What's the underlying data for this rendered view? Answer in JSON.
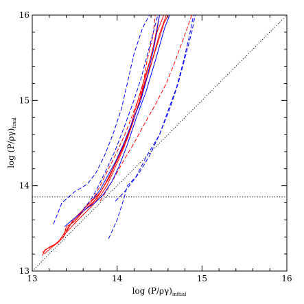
{
  "chart_data": {
    "type": "line",
    "xlabel": "log (P/ργ)",
    "xlabel_sub": "initial",
    "ylabel": "log (P/ργ)",
    "ylabel_sub": "final",
    "xlim": [
      13,
      16
    ],
    "ylim": [
      13,
      16
    ],
    "xticks": [
      13,
      14,
      15,
      16
    ],
    "yticks": [
      13,
      14,
      15,
      16
    ],
    "grid": false,
    "reference_lines": [
      {
        "name": "",
        "kind": "diagonal",
        "style": "dotted",
        "color": "#000000",
        "points": [
          [
            13,
            13
          ],
          [
            16,
            16
          ]
        ]
      },
      {
        "name": "",
        "kind": "horizontal",
        "style": "dotted",
        "color": "#000000",
        "y": 13.87
      }
    ],
    "series": [
      {
        "color": "#ff0000",
        "style": "solid",
        "points": [
          [
            13.12,
            13.18
          ],
          [
            13.15,
            13.25
          ],
          [
            13.25,
            13.3
          ],
          [
            13.37,
            13.4
          ],
          [
            13.4,
            13.52
          ],
          [
            13.5,
            13.58
          ],
          [
            13.6,
            13.7
          ],
          [
            13.72,
            13.8
          ],
          [
            13.82,
            13.95
          ],
          [
            13.9,
            14.1
          ],
          [
            14.0,
            14.3
          ],
          [
            14.12,
            14.55
          ],
          [
            14.22,
            14.85
          ],
          [
            14.32,
            15.2
          ],
          [
            14.42,
            15.6
          ],
          [
            14.5,
            16.0
          ]
        ]
      },
      {
        "color": "#ff0000",
        "style": "solid",
        "points": [
          [
            13.12,
            13.22
          ],
          [
            13.2,
            13.28
          ],
          [
            13.3,
            13.33
          ],
          [
            13.38,
            13.45
          ],
          [
            13.45,
            13.55
          ],
          [
            13.55,
            13.65
          ],
          [
            13.65,
            13.75
          ],
          [
            13.76,
            13.85
          ],
          [
            13.86,
            14.02
          ],
          [
            13.95,
            14.2
          ],
          [
            14.05,
            14.42
          ],
          [
            14.16,
            14.7
          ],
          [
            14.26,
            15.05
          ],
          [
            14.38,
            15.45
          ],
          [
            14.47,
            15.8
          ],
          [
            14.55,
            16.0
          ]
        ]
      },
      {
        "color": "#ff0000",
        "style": "solid",
        "points": [
          [
            13.14,
            13.2
          ],
          [
            13.22,
            13.27
          ],
          [
            13.32,
            13.35
          ],
          [
            13.38,
            13.42
          ],
          [
            13.48,
            13.6
          ],
          [
            13.6,
            13.72
          ],
          [
            13.7,
            13.82
          ],
          [
            13.8,
            13.92
          ],
          [
            13.9,
            14.08
          ],
          [
            14.0,
            14.3
          ],
          [
            14.1,
            14.52
          ],
          [
            14.2,
            14.8
          ],
          [
            14.32,
            15.15
          ],
          [
            14.44,
            15.55
          ],
          [
            14.55,
            15.9
          ],
          [
            14.6,
            16.0
          ]
        ]
      },
      {
        "color": "#ff0000",
        "style": "solid",
        "points": [
          [
            13.4,
            13.45
          ],
          [
            13.52,
            13.58
          ],
          [
            13.62,
            13.68
          ],
          [
            13.72,
            13.78
          ],
          [
            13.8,
            13.88
          ],
          [
            13.88,
            14.0
          ],
          [
            13.98,
            14.22
          ],
          [
            14.08,
            14.45
          ],
          [
            14.18,
            14.72
          ],
          [
            14.28,
            15.05
          ],
          [
            14.4,
            15.42
          ],
          [
            14.5,
            15.78
          ],
          [
            14.58,
            16.0
          ]
        ]
      },
      {
        "color": "#ff0000",
        "style": "dashed",
        "points": [
          [
            13.55,
            13.65
          ],
          [
            13.62,
            13.75
          ],
          [
            13.72,
            13.85
          ],
          [
            13.8,
            14.0
          ],
          [
            13.9,
            14.2
          ],
          [
            14.0,
            14.4
          ],
          [
            14.1,
            14.62
          ],
          [
            14.2,
            14.88
          ],
          [
            14.3,
            15.15
          ],
          [
            14.35,
            15.45
          ],
          [
            14.42,
            15.75
          ],
          [
            14.45,
            16.0
          ]
        ]
      },
      {
        "color": "#ff0000",
        "style": "dashed",
        "points": [
          [
            13.8,
            13.82
          ],
          [
            13.88,
            13.95
          ],
          [
            13.98,
            14.12
          ],
          [
            14.08,
            14.3
          ],
          [
            14.2,
            14.5
          ],
          [
            14.32,
            14.72
          ],
          [
            14.45,
            14.95
          ],
          [
            14.58,
            15.2
          ],
          [
            14.68,
            15.45
          ],
          [
            14.78,
            15.72
          ],
          [
            14.88,
            16.0
          ]
        ]
      },
      {
        "color": "#0000ff",
        "style": "solid",
        "points": [
          [
            13.38,
            13.52
          ],
          [
            13.5,
            13.62
          ],
          [
            13.62,
            13.72
          ],
          [
            13.74,
            13.8
          ],
          [
            13.84,
            13.9
          ],
          [
            13.94,
            14.05
          ],
          [
            14.02,
            14.22
          ],
          [
            14.12,
            14.48
          ],
          [
            14.22,
            14.78
          ],
          [
            14.34,
            15.1
          ],
          [
            14.46,
            15.5
          ],
          [
            14.56,
            15.85
          ],
          [
            14.62,
            16.0
          ]
        ]
      },
      {
        "color": "#0000ff",
        "style": "solid",
        "points": [
          [
            13.72,
            13.85
          ],
          [
            13.8,
            13.95
          ],
          [
            13.88,
            14.1
          ],
          [
            13.98,
            14.28
          ],
          [
            14.08,
            14.5
          ],
          [
            14.18,
            14.75
          ],
          [
            14.28,
            15.0
          ],
          [
            14.36,
            15.3
          ],
          [
            14.44,
            15.65
          ],
          [
            14.5,
            16.0
          ]
        ]
      },
      {
        "color": "#0000ff",
        "style": "dashed",
        "points": [
          [
            13.25,
            13.55
          ],
          [
            13.35,
            13.8
          ],
          [
            13.5,
            13.93
          ],
          [
            13.65,
            14.02
          ],
          [
            13.75,
            14.15
          ],
          [
            13.85,
            14.35
          ],
          [
            13.95,
            14.6
          ],
          [
            14.05,
            14.9
          ],
          [
            14.12,
            15.2
          ],
          [
            14.2,
            15.55
          ],
          [
            14.3,
            15.85
          ],
          [
            14.38,
            16.0
          ]
        ]
      },
      {
        "color": "#0000ff",
        "style": "dashed",
        "points": [
          [
            13.9,
            13.38
          ],
          [
            14.0,
            13.6
          ],
          [
            14.08,
            13.85
          ],
          [
            14.12,
            14.0
          ],
          [
            14.22,
            14.1
          ],
          [
            14.35,
            14.35
          ],
          [
            14.5,
            14.6
          ],
          [
            14.62,
            14.9
          ],
          [
            14.72,
            15.2
          ],
          [
            14.8,
            15.5
          ],
          [
            14.88,
            15.8
          ],
          [
            14.92,
            16.0
          ]
        ]
      },
      {
        "color": "#0000ff",
        "style": "dashed",
        "points": [
          [
            13.6,
            13.72
          ],
          [
            13.7,
            13.85
          ],
          [
            13.78,
            14.0
          ],
          [
            13.88,
            14.2
          ],
          [
            13.98,
            14.42
          ],
          [
            14.08,
            14.68
          ],
          [
            14.18,
            14.95
          ],
          [
            14.28,
            15.25
          ],
          [
            14.36,
            15.55
          ],
          [
            14.44,
            15.85
          ],
          [
            14.48,
            16.0
          ]
        ]
      },
      {
        "color": "#0000ff",
        "style": "dashed",
        "points": [
          [
            13.98,
            13.82
          ],
          [
            14.08,
            13.92
          ],
          [
            14.16,
            14.02
          ],
          [
            14.26,
            14.15
          ],
          [
            14.38,
            14.35
          ],
          [
            14.5,
            14.6
          ],
          [
            14.6,
            14.88
          ],
          [
            14.7,
            15.15
          ],
          [
            14.78,
            15.45
          ],
          [
            14.85,
            15.75
          ],
          [
            14.9,
            16.0
          ]
        ]
      }
    ]
  }
}
